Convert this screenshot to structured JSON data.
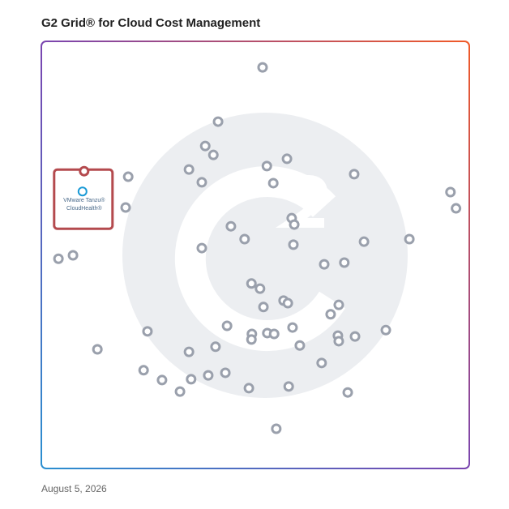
{
  "chart_data": {
    "type": "scatter",
    "title": "G2 Grid® for Cloud Cost Management",
    "date": "August 5, 2026",
    "xlim": [
      0,
      100
    ],
    "ylim": [
      0,
      100
    ],
    "x": [
      51.7,
      41.3,
      38.3,
      40.2,
      34.5,
      37.5,
      20.3,
      19.7,
      52.7,
      57.4,
      54.2,
      73.1,
      95.6,
      96.9,
      58.5,
      59.1,
      44.3,
      47.5,
      37.5,
      58.9,
      75.4,
      86.0,
      4.0,
      7.4,
      66.1,
      70.8,
      49.1,
      51.1,
      51.9,
      56.6,
      57.6,
      69.5,
      67.6,
      24.8,
      43.4,
      49.2,
      49.1,
      52.8,
      54.4,
      58.7,
      69.3,
      69.5,
      73.3,
      80.5,
      13.1,
      34.5,
      40.7,
      60.4,
      65.5,
      23.9,
      28.2,
      35.0,
      39.0,
      43.0,
      32.4,
      48.5,
      57.8,
      71.6,
      54.9
    ],
    "y": [
      93.9,
      81.2,
      75.5,
      73.4,
      70.0,
      67.0,
      68.3,
      61.1,
      70.8,
      72.5,
      66.8,
      68.9,
      64.7,
      60.9,
      58.6,
      57.1,
      56.7,
      53.7,
      51.6,
      52.4,
      53.1,
      53.7,
      49.1,
      49.9,
      47.8,
      48.2,
      43.3,
      42.1,
      37.8,
      39.3,
      38.7,
      38.3,
      36.1,
      32.1,
      33.4,
      31.5,
      30.2,
      31.7,
      31.5,
      33.0,
      31.1,
      29.8,
      30.9,
      32.4,
      27.9,
      27.3,
      28.5,
      28.8,
      24.7,
      23.0,
      20.7,
      20.9,
      21.8,
      22.4,
      18.0,
      18.8,
      19.2,
      17.8,
      9.3
    ],
    "color": "#9aa0ac",
    "highlight": {
      "label": [
        "VMware Tanzu®",
        "CloudHealth®"
      ],
      "x": 10.0,
      "y": 69.6,
      "color": "#b44a4e"
    }
  }
}
